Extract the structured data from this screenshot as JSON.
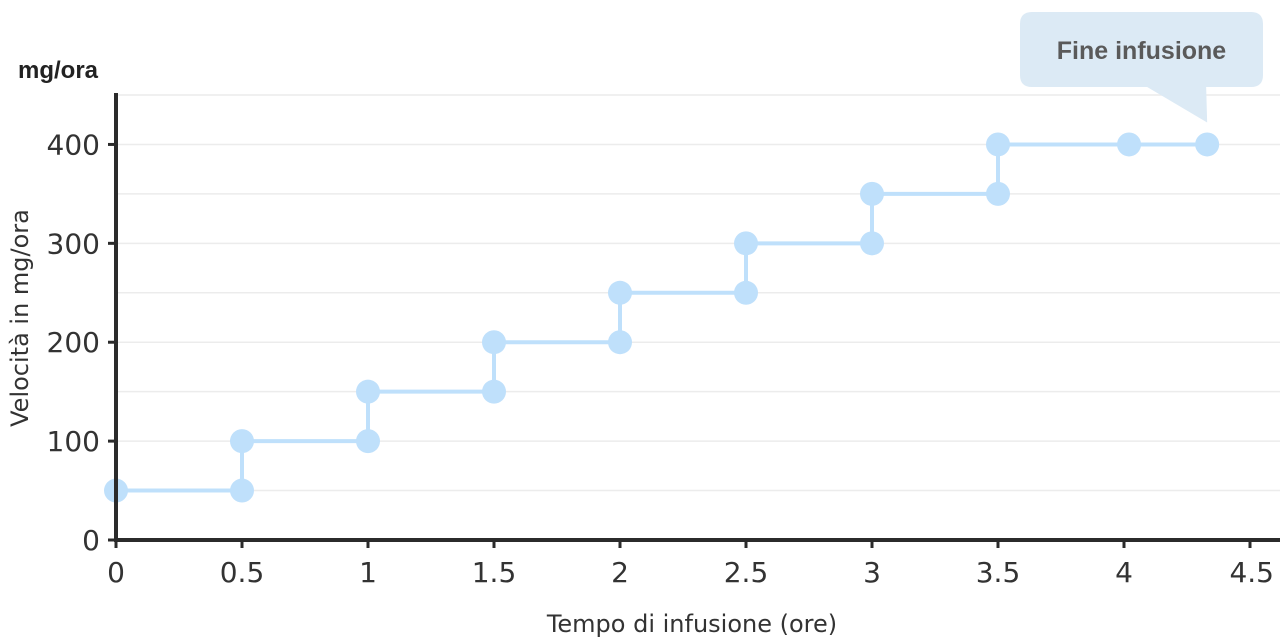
{
  "chart_data": {
    "type": "line",
    "unit_label": "mg/ora",
    "ylabel": "Velocità in mg/ora",
    "xlabel": "Tempo di infusione (ore)",
    "xlim": [
      0,
      4.5
    ],
    "ylim": [
      0,
      450
    ],
    "xticks": [
      0,
      0.5,
      1,
      1.5,
      2,
      2.5,
      3,
      3.5,
      4,
      4.5
    ],
    "yticks": [
      0,
      100,
      200,
      300,
      400
    ],
    "grid_y": [
      50,
      100,
      150,
      200,
      250,
      300,
      350,
      400,
      450
    ],
    "series": [
      {
        "points": [
          [
            0,
            50
          ],
          [
            0.5,
            50
          ],
          [
            0.5,
            100
          ],
          [
            1,
            100
          ],
          [
            1,
            150
          ],
          [
            1.5,
            150
          ],
          [
            1.5,
            200
          ],
          [
            2,
            200
          ],
          [
            2,
            250
          ],
          [
            2.5,
            250
          ],
          [
            2.5,
            300
          ],
          [
            3,
            300
          ],
          [
            3,
            350
          ],
          [
            3.5,
            350
          ],
          [
            3.5,
            400
          ],
          [
            4.02,
            400
          ],
          [
            4.33,
            400
          ]
        ]
      }
    ],
    "annotation": {
      "text": "Fine infusione",
      "x": 4.33,
      "y": 400
    },
    "colors": {
      "series": "#bfe0fb",
      "axis": "#2b2b2b",
      "grid": "#ececec",
      "callout_bg": "#dceaf5",
      "callout_text": "#5a5a5a"
    }
  }
}
